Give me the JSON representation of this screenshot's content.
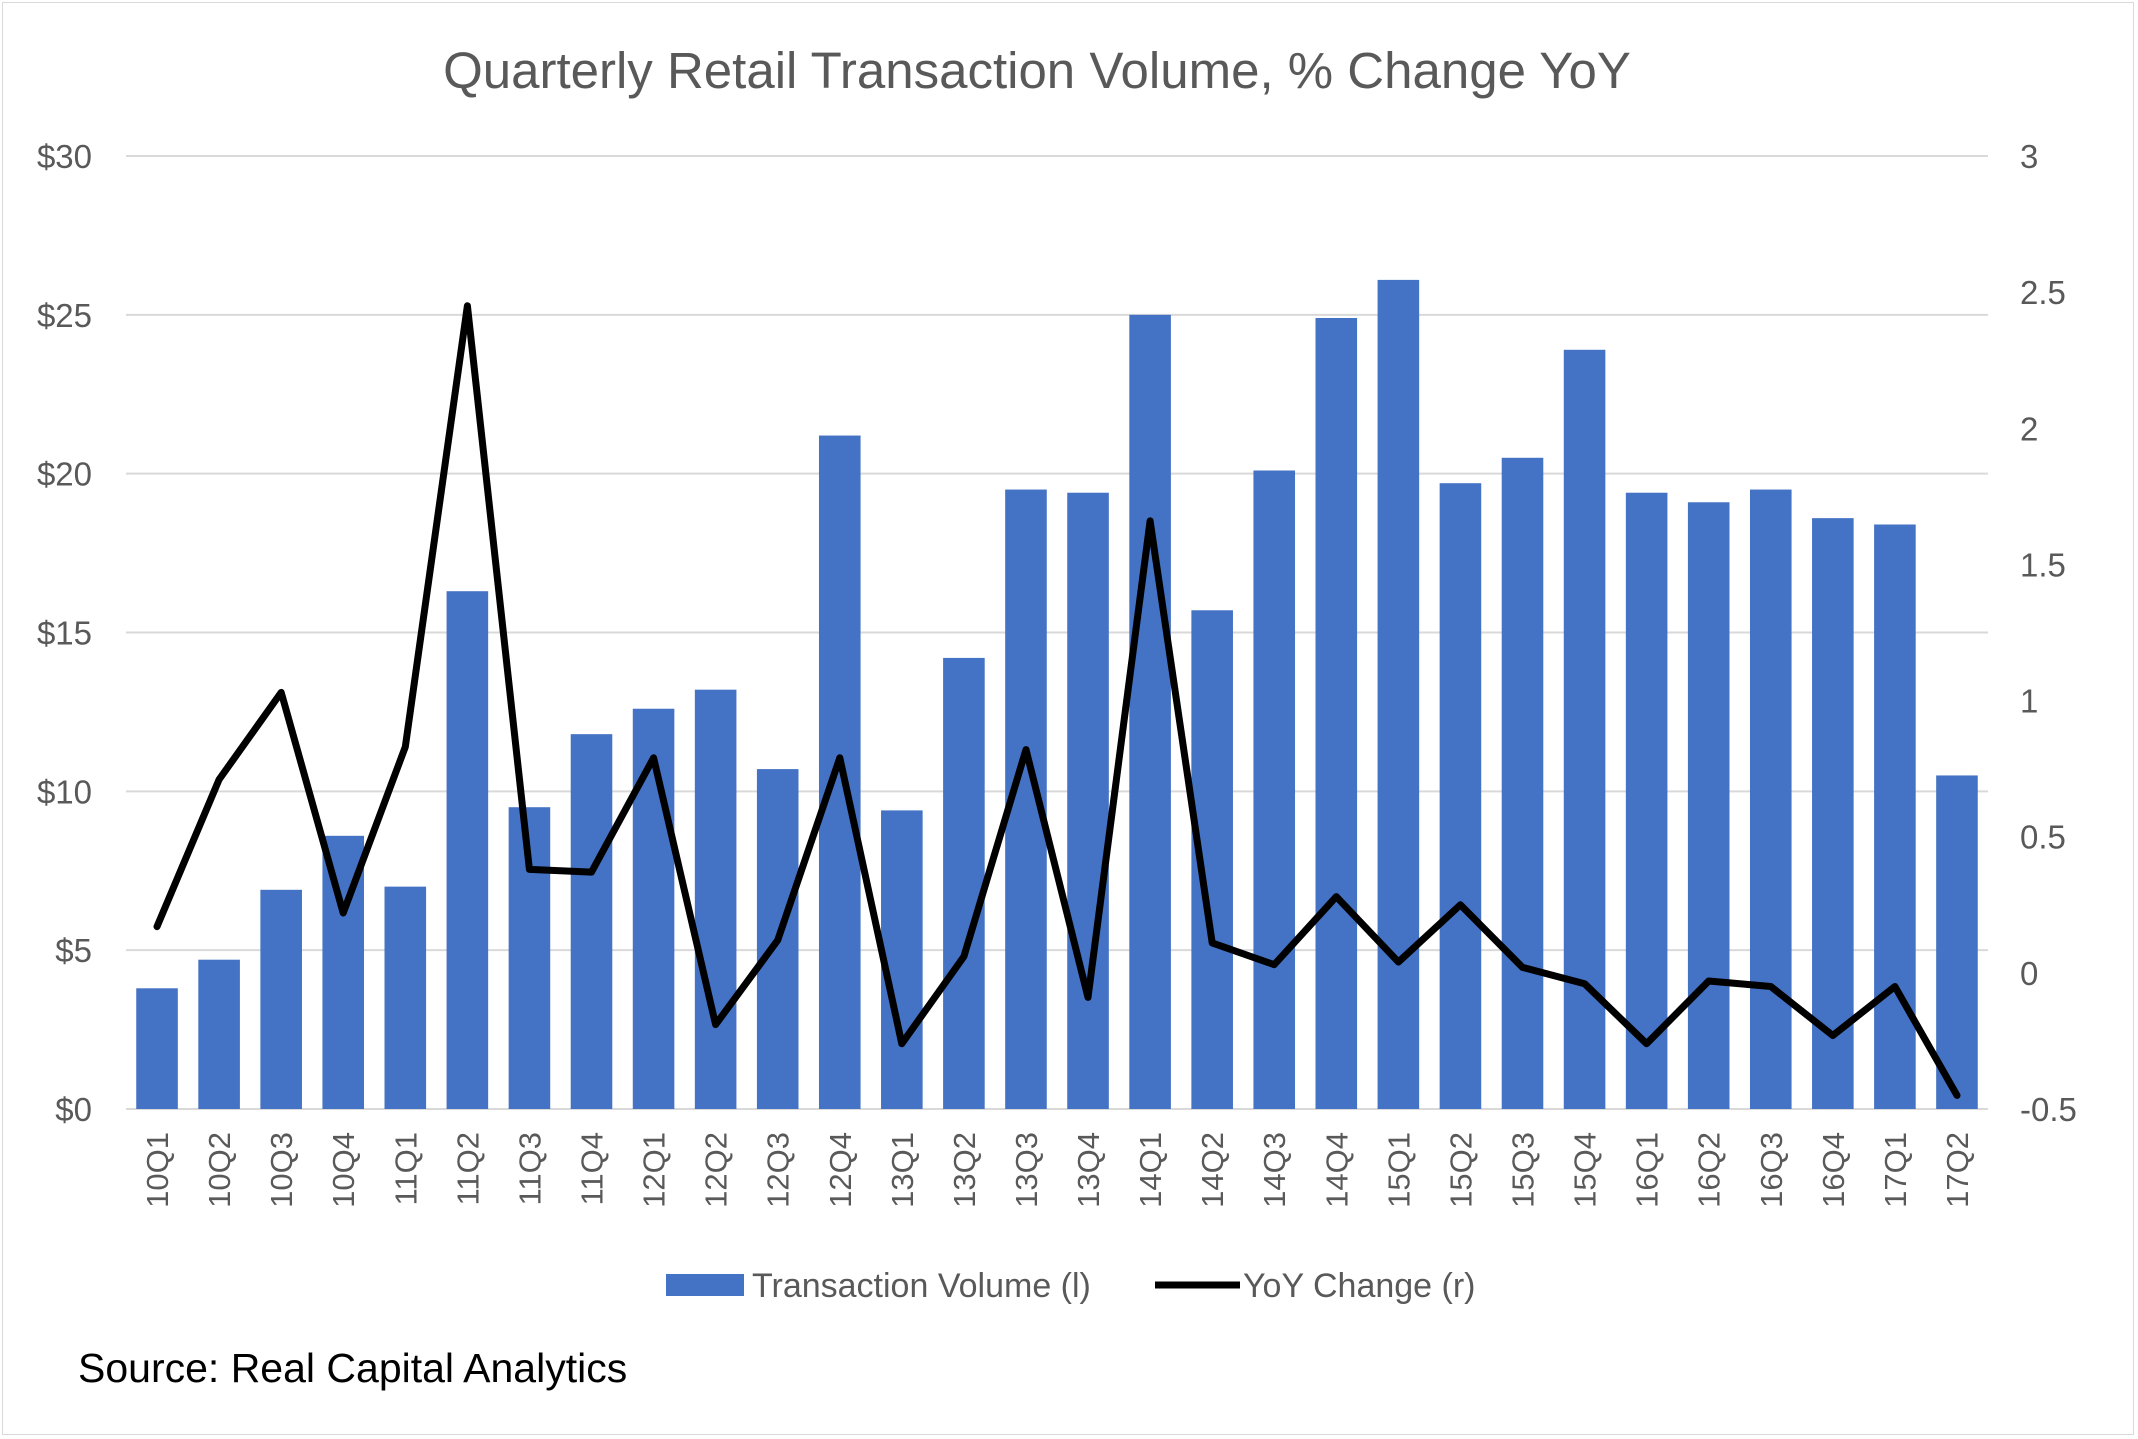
{
  "chart_data": {
    "type": "bar",
    "title": "Quarterly Retail Transaction Volume, % Change YoY",
    "categories": [
      "10Q1",
      "10Q2",
      "10Q3",
      "10Q4",
      "11Q1",
      "11Q2",
      "11Q3",
      "11Q4",
      "12Q1",
      "12Q2",
      "12Q3",
      "12Q4",
      "13Q1",
      "13Q2",
      "13Q3",
      "13Q4",
      "14Q1",
      "14Q2",
      "14Q3",
      "14Q4",
      "15Q1",
      "15Q2",
      "15Q3",
      "15Q4",
      "16Q1",
      "16Q2",
      "16Q3",
      "16Q4",
      "17Q1",
      "17Q2"
    ],
    "series": [
      {
        "name": "Transaction Volume (l)",
        "type": "bar",
        "axis": "left",
        "color": "#4472c4",
        "values": [
          3.8,
          4.7,
          6.9,
          8.6,
          7.0,
          16.3,
          9.5,
          11.8,
          12.6,
          13.2,
          10.7,
          21.2,
          9.4,
          14.2,
          19.5,
          19.4,
          25.0,
          15.7,
          20.1,
          24.9,
          26.1,
          19.7,
          20.5,
          23.9,
          19.4,
          19.1,
          19.5,
          18.6,
          18.4,
          10.5
        ]
      },
      {
        "name": "YoY Change (r)",
        "type": "line",
        "axis": "right",
        "color": "#000000",
        "values": [
          0.17,
          0.71,
          1.03,
          0.22,
          0.83,
          2.45,
          0.38,
          0.37,
          0.79,
          -0.19,
          0.12,
          0.79,
          -0.26,
          0.06,
          0.82,
          -0.09,
          1.66,
          0.11,
          0.03,
          0.28,
          0.04,
          0.25,
          0.02,
          -0.04,
          -0.26,
          -0.03,
          -0.05,
          -0.23,
          -0.05,
          -0.45
        ]
      }
    ],
    "y_left": {
      "min": 0,
      "max": 30,
      "step": 5,
      "tick_labels": [
        "$0",
        "$5",
        "$10",
        "$15",
        "$20",
        "$25",
        "$30"
      ]
    },
    "y_right": {
      "min": -0.5,
      "max": 3,
      "step": 0.5,
      "tick_labels": [
        "-0.5",
        "0",
        "0.5",
        "1",
        "1.5",
        "2",
        "2.5",
        "3"
      ]
    },
    "grid": true,
    "legend_position": "bottom",
    "xlabel": "",
    "ylabel": ""
  },
  "source": "Source: Real Capital Analytics",
  "colors": {
    "title": "#595959",
    "axis_text": "#595959",
    "grid": "#d9d9d9"
  }
}
